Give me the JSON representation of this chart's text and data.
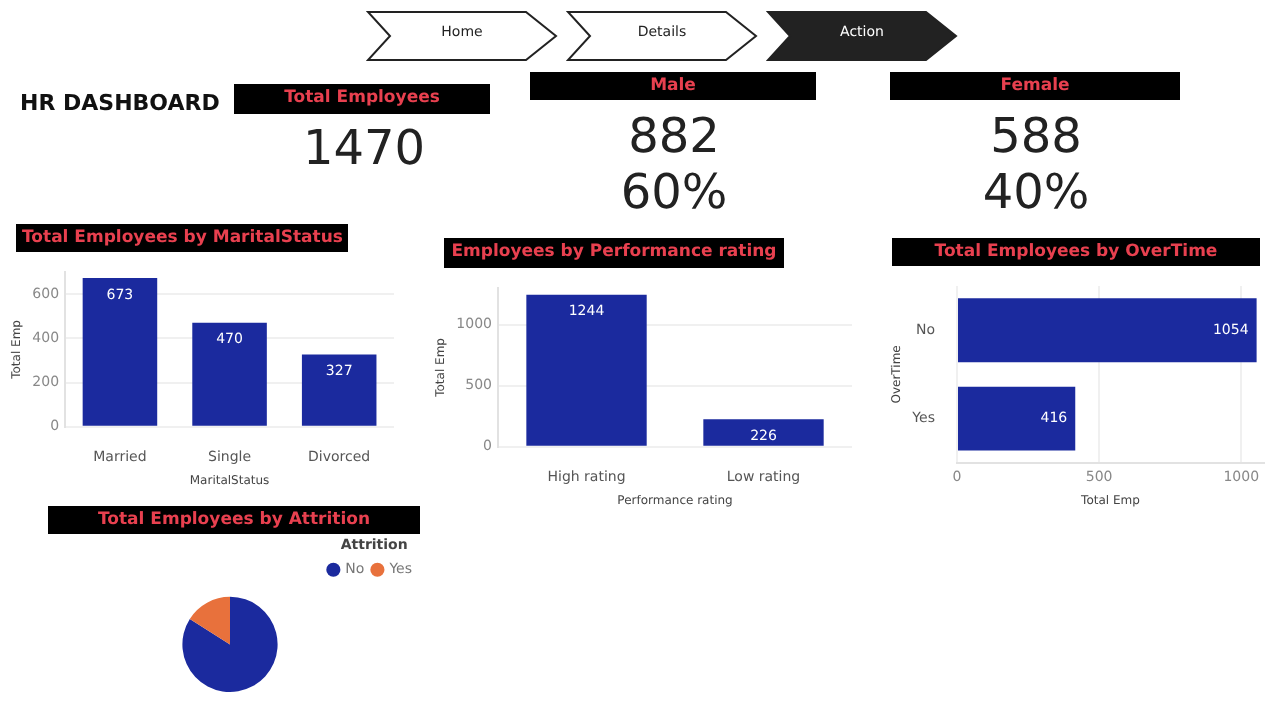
{
  "chart_data": [
    {
      "type": "other",
      "title": "HR DASHBOARD",
      "annotations": [
        "Home",
        "Details",
        "Action"
      ]
    },
    {
      "type": "other",
      "title": "Total Employees",
      "annotations": [
        "1470"
      ]
    },
    {
      "type": "other",
      "title": "Male",
      "annotations": [
        "882",
        "60%"
      ]
    },
    {
      "type": "other",
      "title": "Female",
      "annotations": [
        "588",
        "40%"
      ]
    },
    {
      "type": "bar",
      "title": "Total Employees by MaritalStatus",
      "categories": [
        "Married",
        "Single",
        "Divorced"
      ],
      "values": [
        673,
        470,
        327
      ],
      "color": "#1b2a9e",
      "ylim": [
        0,
        700
      ],
      "yticks": [
        0,
        200,
        400,
        600
      ],
      "xlabel": "MaritalStatus",
      "ylabel": "Total Emp",
      "data_labels": true,
      "grid": "y"
    },
    {
      "type": "bar",
      "title": "Employees by Performance rating",
      "categories": [
        "High rating",
        "Low rating"
      ],
      "values": [
        1244,
        226
      ],
      "color": "#1b2a9e",
      "ylim": [
        0,
        1300
      ],
      "yticks": [
        0,
        500,
        1000
      ],
      "xlabel": "Performance rating",
      "ylabel": "Total Emp",
      "data_labels": true,
      "grid": "y"
    },
    {
      "type": "bar",
      "orientation": "horizontal",
      "title": "Total Employees by OverTime",
      "categories": [
        "No",
        "Yes"
      ],
      "values": [
        1054,
        416
      ],
      "color": "#1b2a9e",
      "xlim": [
        0,
        1080
      ],
      "xticks": [
        0,
        500,
        1000
      ],
      "xlabel": "Total Emp",
      "ylabel": "OverTime",
      "data_labels": true,
      "grid": "x"
    },
    {
      "type": "pie",
      "title": "Total Employees by Attrition",
      "legend_title": "Attrition",
      "categories": [
        "No",
        "Yes"
      ],
      "values": [
        84,
        16
      ],
      "colors": [
        "#1b2a9e",
        "#e8713c"
      ],
      "legend": "top right"
    }
  ]
}
